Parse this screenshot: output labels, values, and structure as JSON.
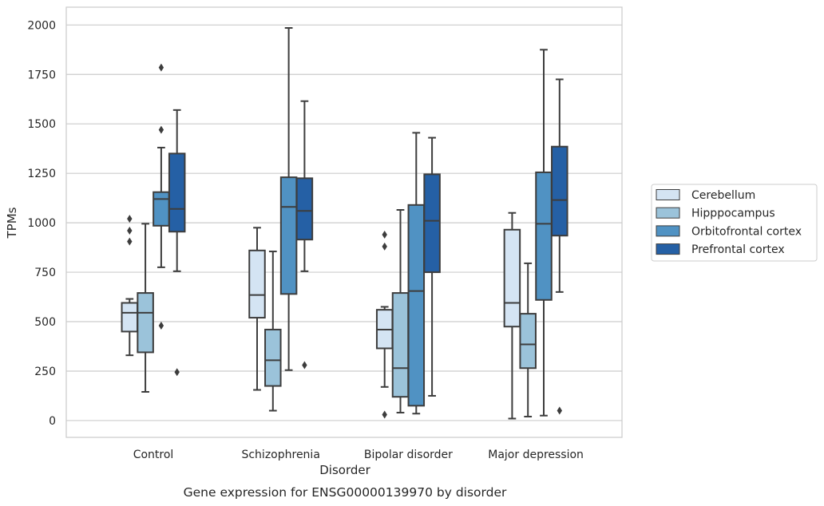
{
  "chart_data": {
    "type": "box",
    "caption": "Gene expression for ENSG00000139970 by disorder",
    "xlabel": "Disorder",
    "ylabel": "TPMs",
    "ylim": [
      -85,
      2090
    ],
    "yticks": [
      0,
      250,
      500,
      750,
      1000,
      1250,
      1500,
      1750,
      2000
    ],
    "grid": true,
    "legend_position": "right",
    "categories": [
      "Control",
      "Schizophrenia",
      "Bipolar disorder",
      "Major depression"
    ],
    "series": [
      {
        "name": "Cerebellum",
        "color": "#d4e4f3",
        "boxes": [
          {
            "whislo": 330,
            "q1": 450,
            "med": 545,
            "q3": 595,
            "whishi": 615,
            "fliers": [
              905,
              960,
              1020
            ]
          },
          {
            "whislo": 155,
            "q1": 520,
            "med": 635,
            "q3": 860,
            "whishi": 975,
            "fliers": []
          },
          {
            "whislo": 170,
            "q1": 365,
            "med": 460,
            "q3": 560,
            "whishi": 575,
            "fliers": [
              30,
              880,
              940
            ]
          },
          {
            "whislo": 10,
            "q1": 475,
            "med": 595,
            "q3": 965,
            "whishi": 1050,
            "fliers": []
          }
        ]
      },
      {
        "name": "Hipppocampus",
        "color": "#9bc3da",
        "boxes": [
          {
            "whislo": 145,
            "q1": 345,
            "med": 545,
            "q3": 645,
            "whishi": 995,
            "fliers": []
          },
          {
            "whislo": 50,
            "q1": 175,
            "med": 305,
            "q3": 460,
            "whishi": 855,
            "fliers": []
          },
          {
            "whislo": 40,
            "q1": 120,
            "med": 265,
            "q3": 645,
            "whishi": 1065,
            "fliers": []
          },
          {
            "whislo": 20,
            "q1": 265,
            "med": 385,
            "q3": 540,
            "whishi": 795,
            "fliers": []
          }
        ]
      },
      {
        "name": "Orbitofrontal cortex",
        "color": "#5092c3",
        "boxes": [
          {
            "whislo": 775,
            "q1": 985,
            "med": 1120,
            "q3": 1155,
            "whishi": 1380,
            "fliers": [
              480,
              1470,
              1785
            ]
          },
          {
            "whislo": 255,
            "q1": 640,
            "med": 1080,
            "q3": 1230,
            "whishi": 1985,
            "fliers": []
          },
          {
            "whislo": 35,
            "q1": 75,
            "med": 655,
            "q3": 1090,
            "whishi": 1455,
            "fliers": []
          },
          {
            "whislo": 25,
            "q1": 610,
            "med": 995,
            "q3": 1255,
            "whishi": 1875,
            "fliers": []
          }
        ]
      },
      {
        "name": "Prefrontal cortex",
        "color": "#2560a5",
        "boxes": [
          {
            "whislo": 755,
            "q1": 955,
            "med": 1070,
            "q3": 1350,
            "whishi": 1570,
            "fliers": [
              245
            ]
          },
          {
            "whislo": 755,
            "q1": 915,
            "med": 1060,
            "q3": 1225,
            "whishi": 1615,
            "fliers": [
              280
            ]
          },
          {
            "whislo": 125,
            "q1": 750,
            "med": 1010,
            "q3": 1245,
            "whishi": 1430,
            "fliers": []
          },
          {
            "whislo": 650,
            "q1": 935,
            "med": 1115,
            "q3": 1385,
            "whishi": 1725,
            "fliers": [
              50
            ]
          }
        ]
      }
    ]
  }
}
